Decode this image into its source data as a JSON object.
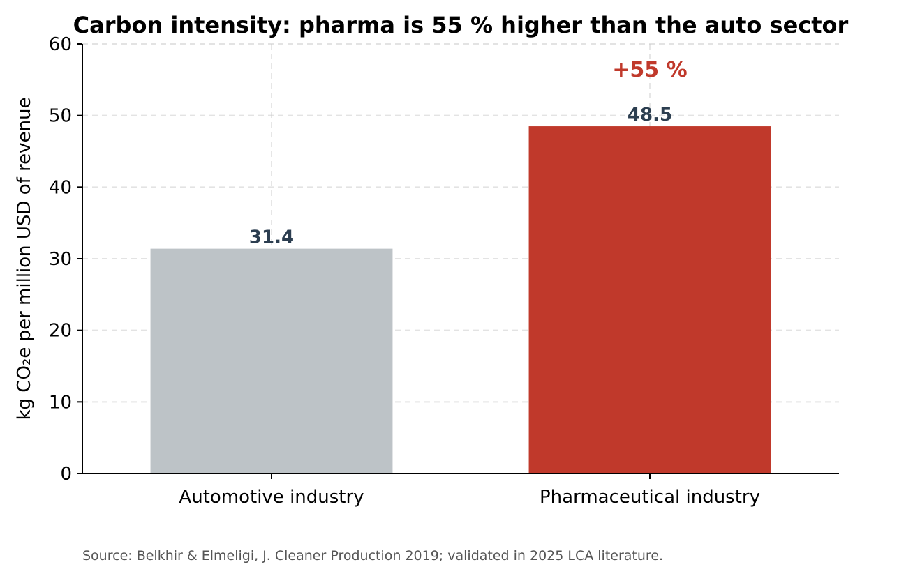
{
  "chart_data": {
    "type": "bar",
    "title": "Carbon intensity: pharma is 55 % higher than the auto sector",
    "xlabel": "",
    "ylabel": "kg CO₂e per million USD of revenue",
    "categories": [
      "Automotive industry",
      "Pharmaceutical industry"
    ],
    "values": [
      31.4,
      48.5
    ],
    "value_labels": [
      "31.4",
      "48.5"
    ],
    "bar_colors": [
      "#bdc3c7",
      "#c0392b"
    ],
    "value_label_color": "#2c3e50",
    "ylim": [
      0,
      60
    ],
    "yticks": [
      0,
      10,
      20,
      30,
      40,
      50,
      60
    ],
    "grid": true,
    "annotation": {
      "text": "+55 %",
      "category": "Pharmaceutical industry",
      "y": 56.5,
      "color": "#c0392b"
    },
    "source": "Source: Belkhir & Elmeligi, J. Cleaner Production 2019; validated in 2025 LCA literature."
  }
}
